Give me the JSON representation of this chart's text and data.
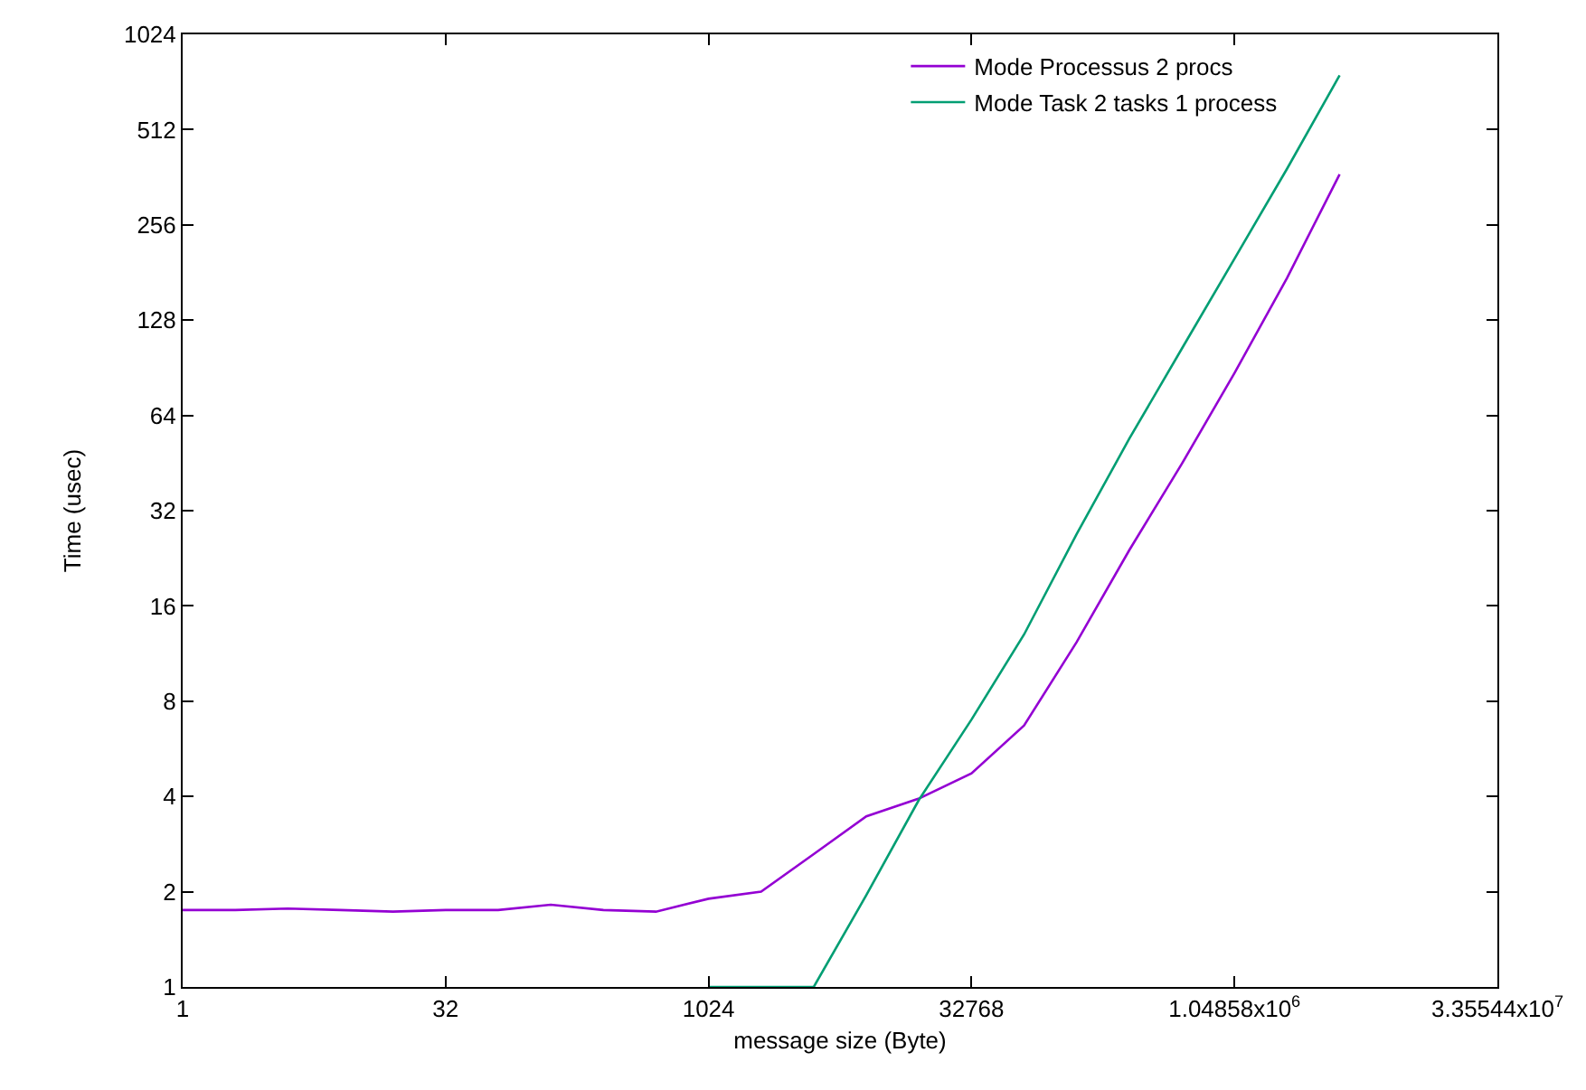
{
  "chart_data": {
    "type": "line",
    "xlabel": "message size (Byte)",
    "ylabel": "Time (usec)",
    "x": [
      1,
      2,
      4,
      8,
      16,
      32,
      64,
      128,
      256,
      512,
      1024,
      2048,
      4096,
      8192,
      16384,
      32768,
      65536,
      131072,
      262144,
      524288,
      1048576,
      2097152,
      4194304
    ],
    "series": [
      {
        "name": "Mode Processus 2 procs",
        "color": "#9400d3",
        "values": [
          1.75,
          1.75,
          1.77,
          1.75,
          1.73,
          1.75,
          1.75,
          1.82,
          1.75,
          1.73,
          1.9,
          2.0,
          2.63,
          3.46,
          3.94,
          4.73,
          6.7,
          12.3,
          24,
          45,
          87,
          174,
          370
        ]
      },
      {
        "name": "Mode Task 2 tasks 1 process",
        "color": "#009e73",
        "values": [
          null,
          null,
          null,
          null,
          null,
          null,
          null,
          null,
          null,
          null,
          1,
          1,
          1,
          1.95,
          3.9,
          7,
          13,
          27,
          54,
          104,
          200,
          385,
          760
        ]
      }
    ],
    "log": "xy",
    "legend": "top right",
    "marker": "none",
    "line_style": "solid",
    "xlim": [
      1,
      33554432
    ],
    "xticks": [
      1,
      32,
      1024,
      32768,
      {
        "value": 1048576,
        "label": "1.04858x10$^{6}$"
      },
      {
        "value": 33554432,
        "label": "3.35544x10$^{7}$"
      }
    ],
    "ylim": [
      1,
      1024
    ],
    "yticks": [
      1,
      2,
      4,
      8,
      16,
      32,
      64,
      128,
      256,
      512,
      1024
    ]
  }
}
